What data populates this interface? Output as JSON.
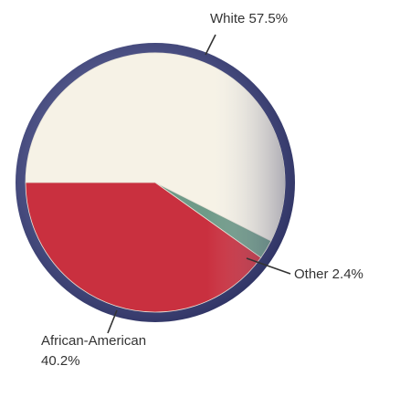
{
  "chart_data": {
    "type": "pie",
    "slices": [
      {
        "name": "White",
        "value": 57.5,
        "label_lines": [
          "White 57.5%"
        ],
        "color": "#f6f2e6"
      },
      {
        "name": "Other",
        "value": 2.4,
        "label_lines": [
          "Other 2.4%"
        ],
        "color": "#6f9a88"
      },
      {
        "name": "African-American",
        "value": 40.2,
        "label_lines": [
          "African-American",
          "40.2%"
        ],
        "color": "#c9303f"
      }
    ],
    "rim_color": "#3b3f6e",
    "legend": "none"
  }
}
